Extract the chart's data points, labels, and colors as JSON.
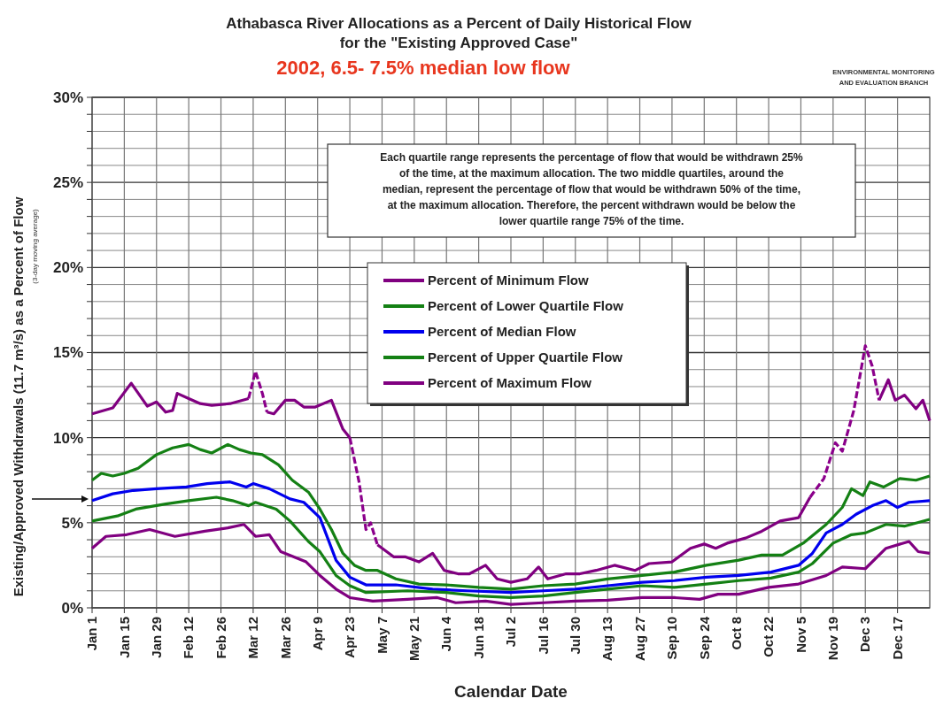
{
  "chart_data": {
    "type": "line",
    "title": "Athabasca River Allocations as a Percent of Daily Historical Flow\nfor the \"Existing Approved Case\"",
    "subtitle": "2002, 6.5- 7.5% median low flow",
    "xlabel": "Calendar Date",
    "ylabel": "Existing/Approved Withdrawals (11.7 m³/s) as a Percent of Flow",
    "annotations": [
      "Each quartile range represents the percentage of flow that would be withdrawn 25%\nof the time, at the maximum allocation.  The two middle quartiles, around the\nmedian, represent the percentage of flow that would be withdrawn 50% of the time,\nat the maximum allocation.  Therefore, the percent withdrawn would be below the\nlower quartile range 75% of the time.",
      "(3-day moving average)",
      "ENVIRONMENTAL MONITORING\nAND EVALUATION BRANCH"
    ],
    "xlim": [
      "--01-01",
      "--12-31"
    ],
    "ylim": [
      0,
      30
    ],
    "xticks": [
      {
        "value": "--01-01",
        "label": "Jan 1"
      },
      {
        "value": "--01-15",
        "label": "Jan 15"
      },
      {
        "value": "--01-29",
        "label": "Jan 29"
      },
      {
        "value": "--02-12",
        "label": "Feb 12"
      },
      {
        "value": "--02-26",
        "label": "Feb 26"
      },
      {
        "value": "--03-12",
        "label": "Mar 12"
      },
      {
        "value": "--03-26",
        "label": "Mar 26"
      },
      {
        "value": "--04-09",
        "label": "Apr 9"
      },
      {
        "value": "--04-23",
        "label": "Apr 23"
      },
      {
        "value": "--05-07",
        "label": "May 7"
      },
      {
        "value": "--05-21",
        "label": "May 21"
      },
      {
        "value": "--06-04",
        "label": "Jun 4"
      },
      {
        "value": "--06-18",
        "label": "Jun 18"
      },
      {
        "value": "--07-02",
        "label": "Jul 2"
      },
      {
        "value": "--07-16",
        "label": "Jul 16"
      },
      {
        "value": "--07-30",
        "label": "Jul 30"
      },
      {
        "value": "--08-13",
        "label": "Aug 13"
      },
      {
        "value": "--08-27",
        "label": "Aug 27"
      },
      {
        "value": "--09-10",
        "label": "Sep 10"
      },
      {
        "value": "--09-24",
        "label": "Sep 24"
      },
      {
        "value": "--10-08",
        "label": "Oct 8"
      },
      {
        "value": "--10-22",
        "label": "Oct 22"
      },
      {
        "value": "--11-05",
        "label": "Nov 5"
      },
      {
        "value": "--11-19",
        "label": "Nov 19"
      },
      {
        "value": "--12-03",
        "label": "Dec 3"
      },
      {
        "value": "--12-17",
        "label": "Dec 17"
      }
    ],
    "yticks": [
      {
        "value": 0,
        "label": "0%"
      },
      {
        "value": 1,
        "label": null
      },
      {
        "value": 2,
        "label": null
      },
      {
        "value": 3,
        "label": null
      },
      {
        "value": 4,
        "label": null
      },
      {
        "value": 5,
        "label": "5%"
      },
      {
        "value": 6,
        "label": null
      },
      {
        "value": 7,
        "label": null
      },
      {
        "value": 8,
        "label": null
      },
      {
        "value": 9,
        "label": null
      },
      {
        "value": 10,
        "label": "10%"
      },
      {
        "value": 11,
        "label": null
      },
      {
        "value": 12,
        "label": null
      },
      {
        "value": 13,
        "label": null
      },
      {
        "value": 14,
        "label": null
      },
      {
        "value": 15,
        "label": "15%"
      },
      {
        "value": 16,
        "label": null
      },
      {
        "value": 17,
        "label": null
      },
      {
        "value": 18,
        "label": null
      },
      {
        "value": 19,
        "label": null
      },
      {
        "value": 20,
        "label": "20%"
      },
      {
        "value": 21,
        "label": null
      },
      {
        "value": 22,
        "label": null
      },
      {
        "value": 23,
        "label": null
      },
      {
        "value": 24,
        "label": null
      },
      {
        "value": 25,
        "label": "25%"
      },
      {
        "value": 26,
        "label": null
      },
      {
        "value": 27,
        "label": null
      },
      {
        "value": 28,
        "label": null
      },
      {
        "value": 29,
        "label": null
      },
      {
        "value": 30,
        "label": "30%"
      }
    ],
    "grid": true,
    "legend": "top",
    "line_style": "solid",
    "marker": "none",
    "series": [
      {
        "name": "Percent of Minimum Flow",
        "color": "#800080",
        "line_style": "solid",
        "x": [
          "--01-01",
          "--01-10",
          "--01-18",
          "--01-25",
          "--01-29",
          "--02-02",
          "--02-05",
          "--02-07",
          "--02-12",
          "--02-17",
          "--02-22",
          "--03-02",
          "--03-10",
          "--03-13",
          "--03-18",
          "--03-21",
          "--03-26",
          "--03-30",
          "--04-03",
          "--04-08",
          "--04-15",
          "--04-20",
          "--04-23",
          "--04-28",
          "--05-05",
          "--05-12",
          "--05-17",
          "--05-23",
          "--05-29",
          "--06-03",
          "--06-09",
          "--06-14",
          "--06-21",
          "--06-26",
          "--07-02",
          "--07-09",
          "--07-14",
          "--07-18",
          "--07-26",
          "--08-01",
          "--08-08",
          "--08-16",
          "--08-25",
          "--08-31",
          "--09-10",
          "--09-18",
          "--09-24",
          "--09-29",
          "--10-04",
          "--10-12",
          "--10-19",
          "--10-27",
          "--11-04",
          "--11-09",
          "--11-21",
          "--12-09",
          "--12-13",
          "--12-16",
          "--12-20",
          "--12-25",
          "--12-28",
          "--12-31"
        ],
        "values": [
          11.4,
          11.75,
          13.2,
          11.85,
          12.1,
          11.5,
          11.6,
          12.6,
          12.3,
          12.0,
          11.9,
          12.0,
          12.3,
          null,
          11.5,
          11.4,
          12.2,
          12.2,
          11.8,
          11.8,
          12.2,
          10.5,
          10.0,
          null,
          3.7,
          3.0,
          3.0,
          2.7,
          3.2,
          2.2,
          2.0,
          2.0,
          2.5,
          1.7,
          1.5,
          1.7,
          2.4,
          1.7,
          2.0,
          2.0,
          2.2,
          2.5,
          2.2,
          2.6,
          2.7,
          3.5,
          3.75,
          3.5,
          3.8,
          4.1,
          4.5,
          5.1,
          5.3,
          6.5,
          null,
          12.2,
          13.4,
          12.2,
          12.5,
          11.7,
          12.2,
          11.0
        ]
      },
      {
        "color": "#8b008b",
        "line_style": "dashed",
        "x": [
          "--03-10",
          "--03-13",
          "--03-16",
          "--03-18",
          "--04-05",
          "--04-23",
          "--04-27",
          "--04-30",
          "--05-02",
          "--05-05",
          "--08-08",
          "--11-09",
          "--11-15",
          "--11-20",
          "--11-23",
          "--11-28",
          "--12-03",
          "--12-06",
          "--12-09"
        ],
        "values": [
          12.3,
          13.9,
          12.6,
          11.5,
          null,
          10.0,
          7.4,
          4.6,
          5.0,
          3.7,
          null,
          6.5,
          7.6,
          9.7,
          9.2,
          11.6,
          15.4,
          14.2,
          12.2
        ]
      },
      {
        "name": "Percent of Lower Quartile Flow",
        "color": "#148014",
        "x": [
          "--01-01",
          "--01-05",
          "--01-10",
          "--01-15",
          "--01-21",
          "--01-29",
          "--02-05",
          "--02-12",
          "--02-17",
          "--02-22",
          "--03-01",
          "--03-06",
          "--03-11",
          "--03-16",
          "--03-23",
          "--03-29",
          "--04-05",
          "--04-10",
          "--04-15",
          "--04-20",
          "--04-25",
          "--04-30",
          "--05-05",
          "--05-13",
          "--05-23",
          "--06-04",
          "--06-18",
          "--07-02",
          "--07-16",
          "--07-30",
          "--08-13",
          "--08-28",
          "--09-11",
          "--09-25",
          "--10-09",
          "--10-19",
          "--10-28",
          "--11-06",
          "--11-16",
          "--11-23",
          "--11-27",
          "--12-02",
          "--12-05",
          "--12-11",
          "--12-18",
          "--12-25",
          "--12-31"
        ],
        "values": [
          7.5,
          7.9,
          7.75,
          7.9,
          8.2,
          9.0,
          9.4,
          9.6,
          9.3,
          9.1,
          9.6,
          9.3,
          9.1,
          9.0,
          8.4,
          7.5,
          6.8,
          5.8,
          4.6,
          3.2,
          2.5,
          2.2,
          2.2,
          1.7,
          1.4,
          1.35,
          1.2,
          1.1,
          1.3,
          1.4,
          1.7,
          1.9,
          2.1,
          2.5,
          2.8,
          3.1,
          3.1,
          3.8,
          4.9,
          5.9,
          7.0,
          6.6,
          7.4,
          7.1,
          7.6,
          7.5,
          7.75
        ]
      },
      {
        "name": "Percent of Median Flow",
        "color": "#0000ee",
        "x": [
          "--01-01",
          "--01-10",
          "--01-19",
          "--01-29",
          "--02-11",
          "--02-20",
          "--03-02",
          "--03-09",
          "--03-12",
          "--03-19",
          "--03-28",
          "--04-03",
          "--04-10",
          "--04-17",
          "--04-23",
          "--04-30",
          "--05-13",
          "--05-29",
          "--06-13",
          "--07-02",
          "--07-16",
          "--07-30",
          "--08-13",
          "--08-28",
          "--09-11",
          "--09-25",
          "--10-09",
          "--10-23",
          "--11-04",
          "--11-10",
          "--11-16",
          "--11-23",
          "--11-29",
          "--12-06",
          "--12-12",
          "--12-17",
          "--12-22",
          "--12-31"
        ],
        "values": [
          6.3,
          6.7,
          6.9,
          7.0,
          7.1,
          7.3,
          7.4,
          7.1,
          7.3,
          7.0,
          6.4,
          6.2,
          5.3,
          2.8,
          1.8,
          1.35,
          1.35,
          1.1,
          1.0,
          0.9,
          1.0,
          1.1,
          1.3,
          1.5,
          1.6,
          1.8,
          1.9,
          2.1,
          2.5,
          3.2,
          4.4,
          4.9,
          5.5,
          6.0,
          6.3,
          5.9,
          6.2,
          6.3
        ]
      },
      {
        "name": "Percent of Upper Quartile Flow",
        "color": "#148014",
        "x": [
          "--01-01",
          "--01-12",
          "--01-20",
          "--02-02",
          "--02-12",
          "--02-24",
          "--03-03",
          "--03-10",
          "--03-13",
          "--03-22",
          "--03-28",
          "--04-05",
          "--04-10",
          "--04-17",
          "--04-23",
          "--04-30",
          "--05-18",
          "--06-04",
          "--06-18",
          "--07-02",
          "--07-16",
          "--07-30",
          "--08-13",
          "--08-28",
          "--09-11",
          "--09-25",
          "--10-09",
          "--10-23",
          "--11-04",
          "--11-10",
          "--11-19",
          "--11-27",
          "--12-03",
          "--12-12",
          "--12-20",
          "--12-31"
        ],
        "values": [
          5.1,
          5.4,
          5.8,
          6.1,
          6.3,
          6.5,
          6.3,
          6.0,
          6.2,
          5.8,
          5.1,
          3.9,
          3.3,
          1.9,
          1.3,
          0.9,
          1.0,
          0.9,
          0.7,
          0.6,
          0.7,
          0.9,
          1.1,
          1.3,
          1.2,
          1.4,
          1.6,
          1.75,
          2.1,
          2.6,
          3.8,
          4.3,
          4.4,
          4.9,
          4.8,
          5.2
        ]
      },
      {
        "name": "Percent of Maximum Flow",
        "color": "#800080",
        "x": [
          "--01-01",
          "--01-07",
          "--01-16",
          "--01-26",
          "--02-06",
          "--02-19",
          "--03-01",
          "--03-08",
          "--03-13",
          "--03-19",
          "--03-24",
          "--04-04",
          "--04-10",
          "--04-17",
          "--04-23",
          "--05-03",
          "--05-18",
          "--05-31",
          "--06-08",
          "--06-21",
          "--07-02",
          "--07-16",
          "--07-30",
          "--08-13",
          "--08-28",
          "--09-11",
          "--09-22",
          "--09-30",
          "--10-09",
          "--10-22",
          "--11-04",
          "--11-16",
          "--11-23",
          "--12-03",
          "--12-12",
          "--12-22",
          "--12-26",
          "--12-31"
        ],
        "values": [
          3.5,
          4.2,
          4.3,
          4.6,
          4.2,
          4.5,
          4.7,
          4.9,
          4.2,
          4.3,
          3.3,
          2.7,
          1.9,
          1.1,
          0.6,
          0.4,
          0.5,
          0.6,
          0.3,
          0.4,
          0.2,
          0.3,
          0.4,
          0.45,
          0.6,
          0.6,
          0.5,
          0.8,
          0.8,
          1.2,
          1.4,
          1.9,
          2.4,
          2.3,
          3.5,
          3.9,
          3.3,
          3.2
        ]
      }
    ]
  }
}
